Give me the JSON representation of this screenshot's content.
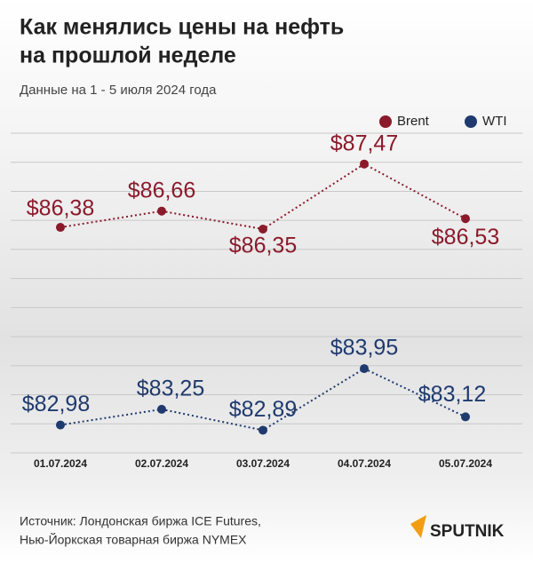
{
  "chart_data": {
    "type": "line",
    "title": [
      "Как менялись цены на нефть",
      "на прошлой неделе"
    ],
    "subtitle": "Данные на 1 - 5 июля 2024 года",
    "categories": [
      "01.07.2024",
      "02.07.2024",
      "03.07.2024",
      "04.07.2024",
      "05.07.2024"
    ],
    "series": [
      {
        "name": "Brent",
        "color": "#8b1a2b",
        "values": [
          86.38,
          86.66,
          86.35,
          87.47,
          86.53
        ],
        "value_labels": [
          "$86,38",
          "$86,66",
          "$86,35",
          "$87,47",
          "$86,53"
        ]
      },
      {
        "name": "WTI",
        "color": "#1f3a6e",
        "values": [
          82.98,
          83.25,
          82.89,
          83.95,
          83.12
        ],
        "value_labels": [
          "$82,98",
          "$83,25",
          "$82,89",
          "$83,95",
          "$83,12"
        ]
      }
    ],
    "ylim": [
      82.5,
      88
    ],
    "grid": true,
    "legend": "top-right",
    "source": [
      "Источник: Лондонская биржа ICE Futures,",
      "Нью-Йоркская товарная биржа NYMEX"
    ],
    "brand": "SPUTNIK"
  }
}
